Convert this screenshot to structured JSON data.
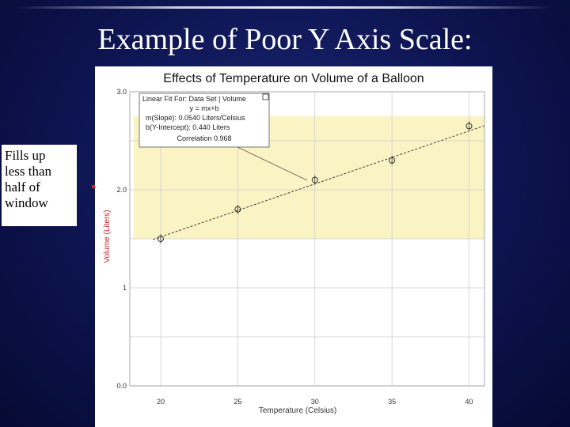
{
  "slide": {
    "title": "Example of Poor Y Axis Scale:",
    "callout_lines": [
      "Fills up",
      "less than",
      "half of",
      "window"
    ]
  },
  "colors": {
    "background": "#0d1450",
    "brace": "#e02020",
    "highlight_band": "#faf3c4",
    "fit_line": "#444444"
  },
  "fit_box": {
    "lines": [
      "Linear Fit For: Data Set | Volume",
      "y = mx+b",
      "m(Slope): 0.0540 Liters/Celsius",
      "b(Y-Intercept): 0.440 Liters",
      "Correlation 0.968"
    ]
  },
  "chart_data": {
    "type": "scatter",
    "title": "Effects of Temperature on Volume of a Balloon",
    "xlabel": "Temperature (Celsius)",
    "ylabel": "Volume (Liters)",
    "xlim": [
      18,
      41
    ],
    "ylim": [
      0.0,
      3.0
    ],
    "x_ticks": [
      "20",
      "25",
      "30",
      "35",
      "40"
    ],
    "y_ticks": [
      "0.0",
      "1",
      "2.0",
      "3.0"
    ],
    "grid": true,
    "series": [
      {
        "x": [
          20,
          25,
          30,
          35,
          40
        ],
        "y": [
          1.5,
          1.8,
          2.1,
          2.3,
          2.65
        ]
      }
    ],
    "fit": {
      "slope": 0.054,
      "intercept": 0.44
    },
    "highlight_band": [
      1.5,
      2.75
    ]
  }
}
